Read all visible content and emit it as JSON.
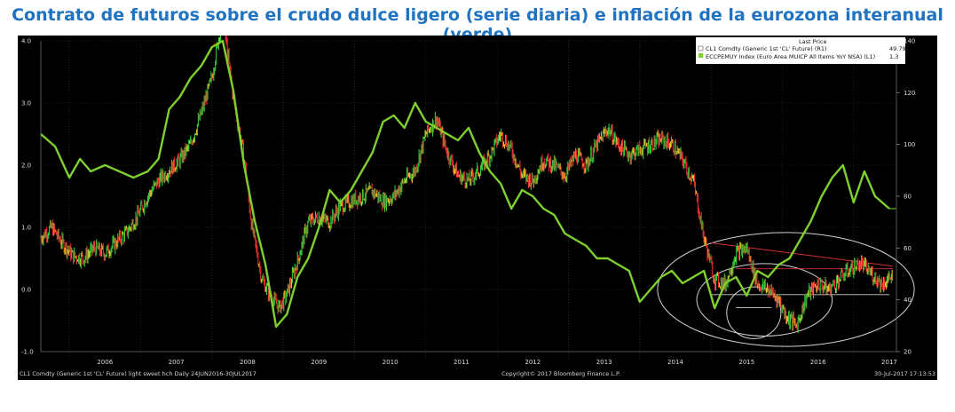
{
  "title": "Contrato de futuros sobre el crudo dulce ligero (serie diaria) e inflación de la eurozona interanual (verde)",
  "legend": {
    "header": "Last Price",
    "items": [
      {
        "label": "CL1 Comdty  (Generic 1st 'CL' Future)  (R1)",
        "value": "49.79"
      },
      {
        "label": "ECCPEMUY Index  (Euro Area MUICP All Items YoY NSA)  (L1)",
        "value": "1.3"
      }
    ]
  },
  "footer": {
    "left": "CL1 Comdty (Generic 1st 'CL' Future) light sweet hch   Daily 24JUN2016-30JUL2017",
    "center": "Copyright© 2017 Bloomberg Finance L.P.",
    "right": "30-Jul-2017 17:13:53"
  },
  "colors": {
    "background": "#000000",
    "inflation": "#7fd02e",
    "crude_up": "#38c838",
    "crude_down": "#e83030",
    "crude_mid": "#e8c020",
    "annotation_ellipse": "#d0d0d0",
    "annotation_line": "#d03030",
    "title": "#1f73c0"
  },
  "chart_data": {
    "type": "line",
    "title": "Contrato de futuros sobre el crudo dulce ligero (serie diaria) e inflación de la eurozona interanual (verde)",
    "x_axis": {
      "labels": [
        "2006",
        "2007",
        "2008",
        "2009",
        "2010",
        "2011",
        "2012",
        "2013",
        "2014",
        "2015",
        "2016",
        "2017"
      ],
      "range": [
        2005.6,
        2017.6
      ]
    },
    "left_axis": {
      "ticks": [
        "4.0",
        "3.0",
        "2.0",
        "1.0",
        "0.0",
        "-1.0"
      ],
      "range": [
        -1.0,
        4.0
      ]
    },
    "right_axis": {
      "ticks": [
        "140",
        "120",
        "100",
        "80",
        "60",
        "40",
        "20"
      ],
      "range": [
        20,
        140
      ]
    },
    "last_price_marker": {
      "series": "ECCPEMUY Index",
      "value": 1.3
    },
    "series": [
      {
        "name": "CL1 Comdty  (Generic 1st 'CL' Future)",
        "axis": "right",
        "x": [
          2005.6,
          2005.75,
          2005.9,
          2006.05,
          2006.2,
          2006.35,
          2006.5,
          2006.65,
          2006.8,
          2006.95,
          2007.1,
          2007.25,
          2007.4,
          2007.55,
          2007.7,
          2007.85,
          2008.0,
          2008.15,
          2008.3,
          2008.45,
          2008.55,
          2008.7,
          2008.85,
          2008.95,
          2009.05,
          2009.2,
          2009.35,
          2009.5,
          2009.65,
          2009.8,
          2009.95,
          2010.1,
          2010.25,
          2010.4,
          2010.55,
          2010.7,
          2010.85,
          2011.0,
          2011.15,
          2011.3,
          2011.45,
          2011.6,
          2011.75,
          2011.9,
          2012.05,
          2012.2,
          2012.35,
          2012.5,
          2012.65,
          2012.8,
          2012.95,
          2013.1,
          2013.25,
          2013.4,
          2013.55,
          2013.7,
          2013.85,
          2014.0,
          2014.15,
          2014.3,
          2014.45,
          2014.6,
          2014.75,
          2014.9,
          2015.05,
          2015.2,
          2015.35,
          2015.5,
          2015.65,
          2015.8,
          2015.95,
          2016.05,
          2016.2,
          2016.35,
          2016.5,
          2016.65,
          2016.8,
          2016.95,
          2017.1,
          2017.25,
          2017.4,
          2017.55
        ],
        "values": [
          64,
          68,
          62,
          57,
          56,
          60,
          58,
          62,
          66,
          72,
          80,
          86,
          90,
          94,
          100,
          112,
          126,
          150,
          118,
          95,
          70,
          48,
          40,
          37,
          42,
          55,
          70,
          72,
          70,
          76,
          78,
          80,
          82,
          78,
          80,
          86,
          90,
          104,
          110,
          97,
          88,
          86,
          90,
          96,
          104,
          98,
          88,
          86,
          94,
          92,
          88,
          96,
          92,
          100,
          106,
          100,
          96,
          98,
          100,
          102,
          100,
          94,
          86,
          64,
          48,
          46,
          58,
          60,
          46,
          44,
          40,
          34,
          30,
          42,
          46,
          44,
          48,
          52,
          54,
          50,
          46,
          49.79
        ]
      },
      {
        "name": "ECCPEMUY Index  (Euro Area MUICP All Items YoY NSA)",
        "axis": "left",
        "x": [
          2005.6,
          2005.8,
          2006.0,
          2006.15,
          2006.3,
          2006.5,
          2006.7,
          2006.9,
          2007.1,
          2007.25,
          2007.4,
          2007.55,
          2007.7,
          2007.85,
          2008.0,
          2008.15,
          2008.3,
          2008.45,
          2008.6,
          2008.75,
          2008.9,
          2009.05,
          2009.2,
          2009.35,
          2009.5,
          2009.65,
          2009.8,
          2009.95,
          2010.1,
          2010.25,
          2010.4,
          2010.55,
          2010.7,
          2010.85,
          2011.0,
          2011.15,
          2011.3,
          2011.45,
          2011.6,
          2011.75,
          2011.9,
          2012.05,
          2012.2,
          2012.35,
          2012.5,
          2012.65,
          2012.8,
          2012.95,
          2013.1,
          2013.25,
          2013.4,
          2013.55,
          2013.7,
          2013.85,
          2014.0,
          2014.15,
          2014.3,
          2014.45,
          2014.6,
          2014.75,
          2014.9,
          2015.05,
          2015.2,
          2015.35,
          2015.5,
          2015.65,
          2015.8,
          2015.95,
          2016.1,
          2016.25,
          2016.4,
          2016.55,
          2016.7,
          2016.85,
          2017.0,
          2017.15,
          2017.3,
          2017.5
        ],
        "values": [
          2.5,
          2.3,
          1.8,
          2.1,
          1.9,
          2.0,
          1.9,
          1.8,
          1.9,
          2.1,
          2.9,
          3.1,
          3.4,
          3.6,
          3.9,
          4.0,
          3.2,
          2.0,
          1.1,
          0.4,
          -0.6,
          -0.4,
          0.2,
          0.5,
          1.0,
          1.6,
          1.4,
          1.6,
          1.9,
          2.2,
          2.7,
          2.8,
          2.6,
          3.0,
          2.7,
          2.6,
          2.5,
          2.4,
          2.6,
          2.2,
          1.9,
          1.7,
          1.3,
          1.6,
          1.5,
          1.3,
          1.2,
          0.9,
          0.8,
          0.7,
          0.5,
          0.5,
          0.4,
          0.3,
          -0.2,
          0.0,
          0.2,
          0.3,
          0.1,
          0.2,
          0.3,
          -0.3,
          0.1,
          0.2,
          -0.1,
          0.3,
          0.2,
          0.4,
          0.5,
          0.8,
          1.1,
          1.5,
          1.8,
          2.0,
          1.4,
          1.9,
          1.5,
          1.3
        ]
      }
    ]
  }
}
